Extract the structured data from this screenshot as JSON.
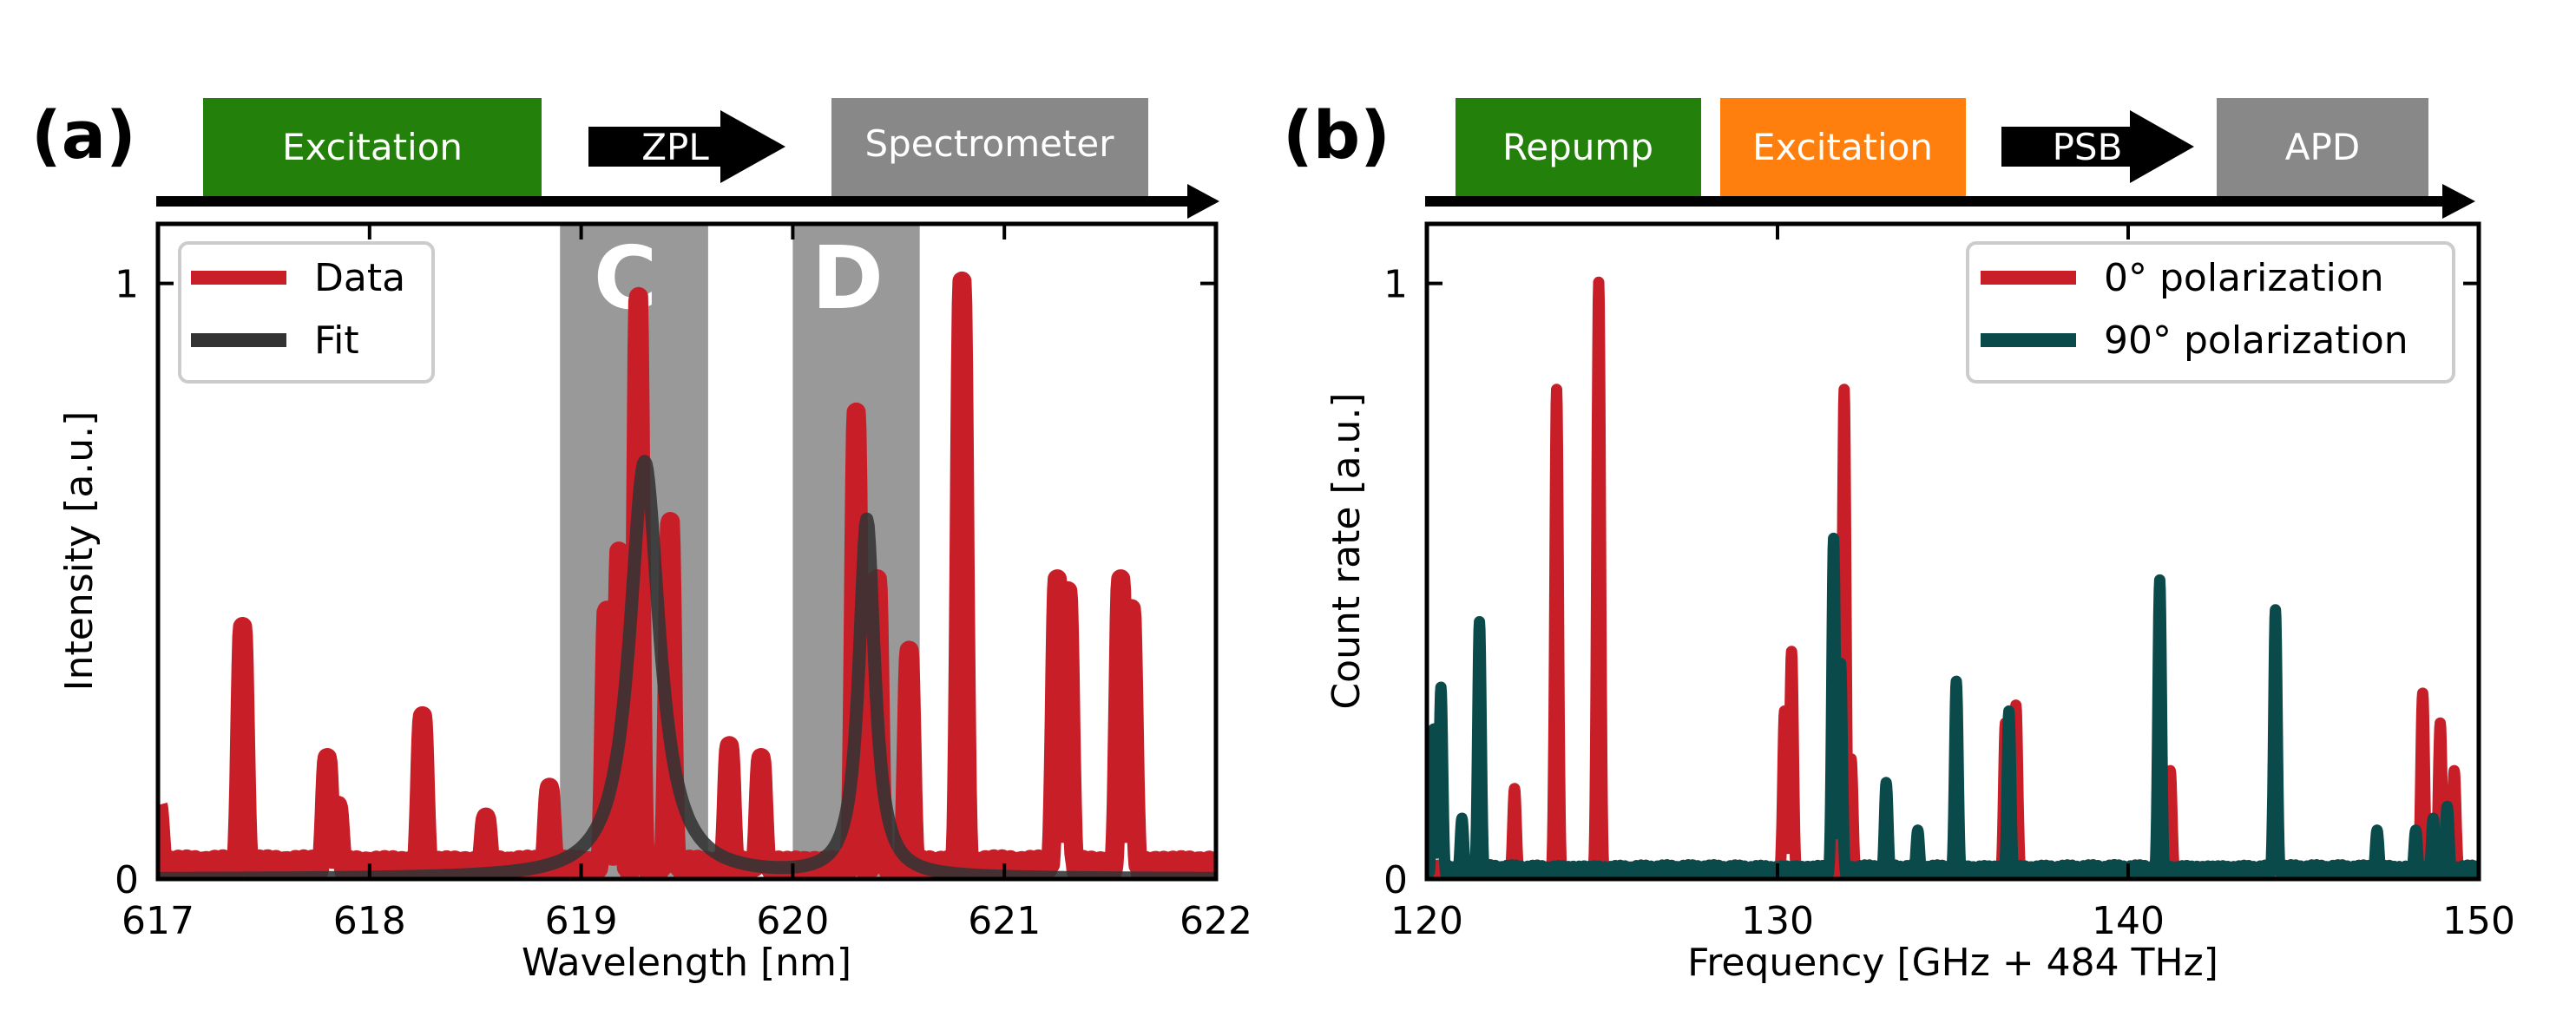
{
  "panels": {
    "a": {
      "label": "(a)",
      "sequence": [
        {
          "label": "Excitation",
          "color": "#22800b",
          "kind": "box"
        },
        {
          "label": "ZPL",
          "color": "#000000",
          "kind": "arrow"
        },
        {
          "label": "Spectrometer",
          "color": "#888888",
          "kind": "box"
        }
      ],
      "region_labels": [
        "C",
        "D"
      ]
    },
    "b": {
      "label": "(b)",
      "sequence": [
        {
          "label": "Repump",
          "color": "#22800b",
          "kind": "box"
        },
        {
          "label": "Excitation",
          "color": "#ff7f0e",
          "kind": "box"
        },
        {
          "label": "PSB",
          "color": "#000000",
          "kind": "arrow"
        },
        {
          "label": "APD",
          "color": "#888888",
          "kind": "box"
        }
      ]
    }
  },
  "colors": {
    "data_red": "#c81e28",
    "fit_dark": "#333333",
    "teal": "#0b4a4a",
    "shade": "#999999"
  },
  "chart_data": [
    {
      "type": "line",
      "xlabel": "Wavelength [nm]",
      "ylabel": "Intensity [a.u.]",
      "xlim": [
        617,
        622
      ],
      "ylim": [
        0,
        1.1
      ],
      "xticks": [
        "617",
        "618",
        "619",
        "620",
        "621",
        "622"
      ],
      "yticks": [
        "0",
        "1"
      ],
      "legend": {
        "placement": "top-left",
        "entries": [
          "Data",
          "Fit"
        ]
      },
      "shaded_regions": [
        {
          "label": "C",
          "x": [
            618.9,
            619.6
          ]
        },
        {
          "label": "D",
          "x": [
            620.0,
            620.6
          ]
        }
      ],
      "series": [
        {
          "name": "Data",
          "color": "#c81e28",
          "baseline": 0.02,
          "peaks": [
            {
              "x": 617.0,
              "y": 0.12
            },
            {
              "x": 617.4,
              "y": 0.42
            },
            {
              "x": 617.8,
              "y": 0.2
            },
            {
              "x": 617.85,
              "y": 0.12
            },
            {
              "x": 618.25,
              "y": 0.27
            },
            {
              "x": 618.55,
              "y": 0.1
            },
            {
              "x": 618.85,
              "y": 0.15
            },
            {
              "x": 619.12,
              "y": 0.45
            },
            {
              "x": 619.18,
              "y": 0.55
            },
            {
              "x": 619.27,
              "y": 0.98
            },
            {
              "x": 619.42,
              "y": 0.6
            },
            {
              "x": 619.7,
              "y": 0.22
            },
            {
              "x": 619.85,
              "y": 0.2
            },
            {
              "x": 620.3,
              "y": 0.78
            },
            {
              "x": 620.4,
              "y": 0.5
            },
            {
              "x": 620.55,
              "y": 0.38
            },
            {
              "x": 620.8,
              "y": 1.0
            },
            {
              "x": 621.25,
              "y": 0.5
            },
            {
              "x": 621.3,
              "y": 0.48
            },
            {
              "x": 621.55,
              "y": 0.5
            },
            {
              "x": 621.6,
              "y": 0.45
            }
          ]
        },
        {
          "name": "Fit",
          "color": "#333333",
          "lorentzians": [
            {
              "x0": 619.3,
              "amp": 0.7,
              "gamma": 0.085
            },
            {
              "x0": 620.35,
              "amp": 0.6,
              "gamma": 0.045
            }
          ]
        }
      ]
    },
    {
      "type": "line",
      "xlabel": "Frequency [GHz + 484 THz]",
      "ylabel": "Count rate [a.u.]",
      "xlim": [
        120,
        150
      ],
      "ylim": [
        0,
        1.1
      ],
      "xticks": [
        "120",
        "130",
        "140",
        "150"
      ],
      "yticks": [
        "0",
        "1"
      ],
      "legend": {
        "placement": "top-right",
        "entries": [
          "0° polarization",
          "90° polarization"
        ]
      },
      "series": [
        {
          "name": "0° polarization",
          "color": "#c81e28",
          "baseline": 0.01,
          "peaks": [
            {
              "x": 122.5,
              "y": 0.15
            },
            {
              "x": 123.7,
              "y": 0.82
            },
            {
              "x": 124.9,
              "y": 1.0
            },
            {
              "x": 130.2,
              "y": 0.28
            },
            {
              "x": 130.4,
              "y": 0.38
            },
            {
              "x": 131.9,
              "y": 0.82
            },
            {
              "x": 132.1,
              "y": 0.2
            },
            {
              "x": 136.5,
              "y": 0.26
            },
            {
              "x": 136.8,
              "y": 0.29
            },
            {
              "x": 141.2,
              "y": 0.18
            },
            {
              "x": 148.4,
              "y": 0.31
            },
            {
              "x": 148.9,
              "y": 0.26
            },
            {
              "x": 149.3,
              "y": 0.18
            }
          ]
        },
        {
          "name": "90° polarization",
          "color": "#0b4a4a",
          "baseline": 0.01,
          "peaks": [
            {
              "x": 120.2,
              "y": 0.25
            },
            {
              "x": 120.4,
              "y": 0.32
            },
            {
              "x": 121.0,
              "y": 0.1
            },
            {
              "x": 121.5,
              "y": 0.43
            },
            {
              "x": 131.6,
              "y": 0.57
            },
            {
              "x": 131.8,
              "y": 0.36
            },
            {
              "x": 133.1,
              "y": 0.16
            },
            {
              "x": 134.0,
              "y": 0.08
            },
            {
              "x": 135.1,
              "y": 0.33
            },
            {
              "x": 136.6,
              "y": 0.28
            },
            {
              "x": 140.9,
              "y": 0.5
            },
            {
              "x": 144.2,
              "y": 0.45
            },
            {
              "x": 147.1,
              "y": 0.08
            },
            {
              "x": 148.2,
              "y": 0.08
            },
            {
              "x": 148.7,
              "y": 0.1
            },
            {
              "x": 149.1,
              "y": 0.12
            }
          ]
        }
      ]
    }
  ]
}
